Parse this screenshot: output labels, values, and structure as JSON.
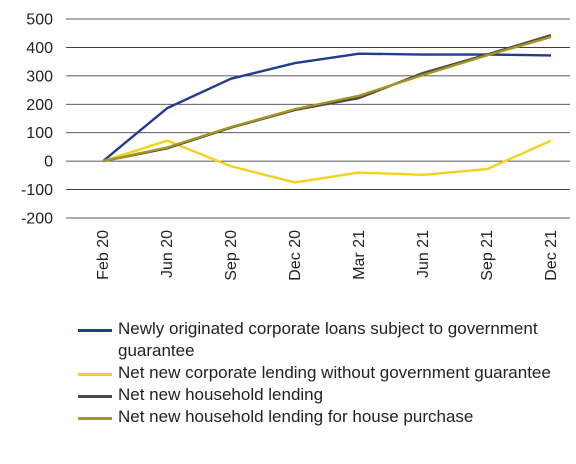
{
  "chart_data": {
    "type": "line",
    "categories": [
      "Feb 20",
      "Jun 20",
      "Sep 20",
      "Dec 20",
      "Mar 21",
      "Jun 21",
      "Sep 21",
      "Dec 21"
    ],
    "ylim": [
      -200,
      500
    ],
    "yticks": [
      -200,
      -100,
      0,
      100,
      200,
      300,
      400,
      500
    ],
    "grid": true,
    "legend_position": "bottom",
    "series": [
      {
        "name": "Newly originated corporate loans subject to government guarantee",
        "color": "#1f3d8c",
        "values": [
          0,
          186,
          290,
          345,
          378,
          375,
          375,
          372
        ]
      },
      {
        "name": "Net new corporate lending without government guarantee",
        "color": "#f5d21a",
        "values": [
          0,
          72,
          -18,
          -75,
          -40,
          -48,
          -28,
          72
        ]
      },
      {
        "name": "Net new household lending",
        "color": "#4a4a4a",
        "values": [
          0,
          45,
          118,
          180,
          222,
          310,
          375,
          443
        ]
      },
      {
        "name": "Net new household lending for house purchase",
        "color": "#a89520",
        "values": [
          0,
          48,
          120,
          183,
          230,
          303,
          372,
          437
        ]
      }
    ]
  }
}
